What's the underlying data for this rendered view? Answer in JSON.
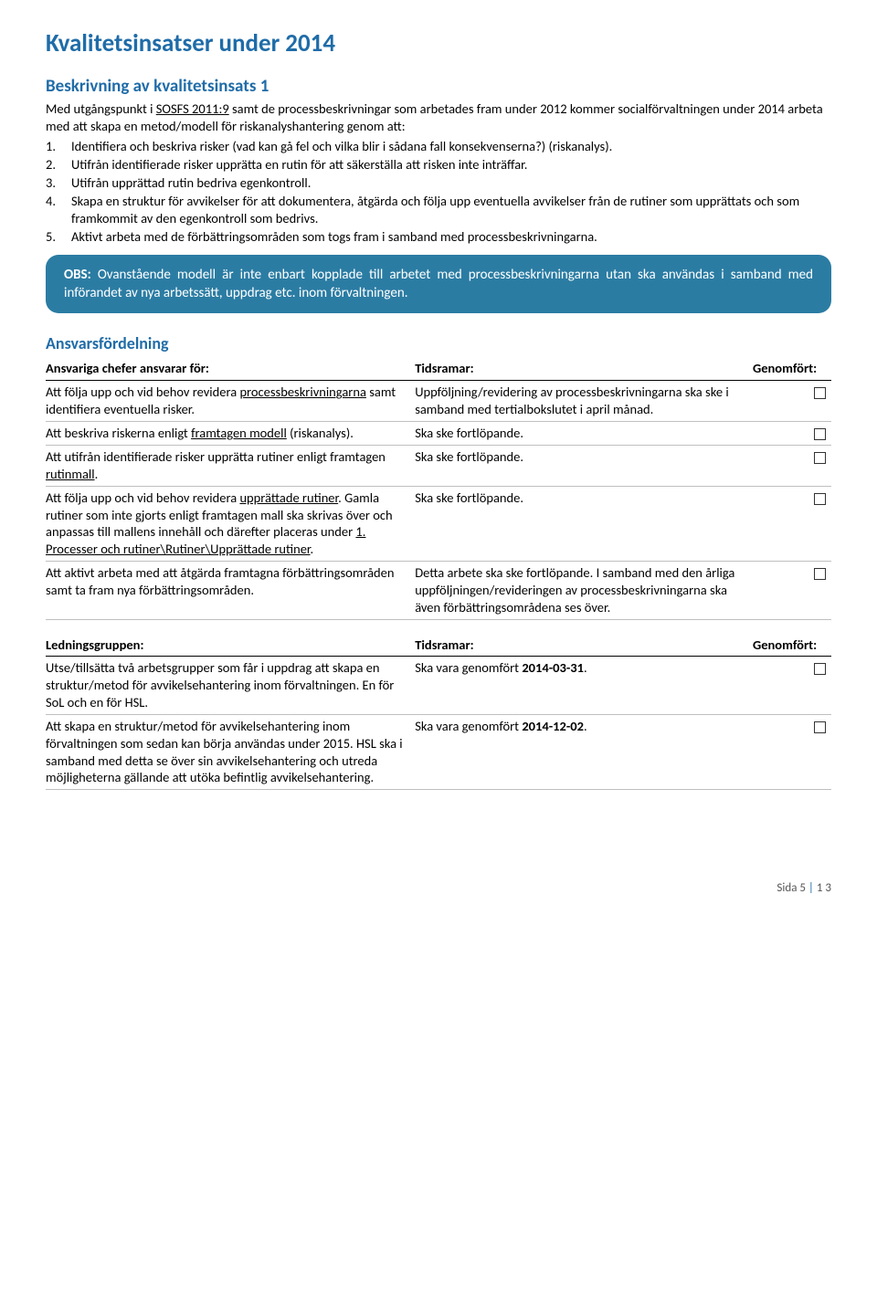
{
  "colors": {
    "heading": "#1f6ca8",
    "callout_bg": "#2b7ca3",
    "callout_text": "#ffffff",
    "body_text": "#000000",
    "row_border": "#bfbfbf",
    "header_border": "#000000"
  },
  "title": "Kvalitetsinsatser under 2014",
  "subheading": "Beskrivning av kvalitetsinsats 1",
  "intro_pre": "Med utgångspunkt i ",
  "intro_underline": "SOSFS 2011:9",
  "intro_post": " samt de processbeskrivningar som arbetades fram under 2012 kommer socialförvaltningen under 2014 arbeta med att skapa en metod/modell för riskanalyshantering genom att:",
  "list": [
    "Identifiera och beskriva risker (vad kan gå fel och vilka blir i sådana fall konsekvenserna?) (riskanalys).",
    "Utifrån identifierade risker upprätta en rutin för att säkerställa att risken inte inträffar.",
    "Utifrån upprättad rutin bedriva egenkontroll.",
    "Skapa en struktur för avvikelser för att dokumentera, åtgärda och följa upp eventuella avvikelser från de rutiner som upprättats och som framkommit av den egenkontroll som bedrivs.",
    "Aktivt arbeta med de förbättringsområden som togs fram i samband med processbeskrivningarna."
  ],
  "callout_prefix": "OBS:",
  "callout_text": " Ovanstående modell är inte enbart kopplade till arbetet med processbeskrivningarna utan ska användas i samband med införandet av nya arbetssätt, uppdrag etc. inom förvaltningen.",
  "section_heading": "Ansvarsfördelning",
  "table1": {
    "headers": [
      "Ansvariga chefer ansvarar för:",
      "Tidsramar:",
      "Genomfört:"
    ],
    "rows": [
      {
        "c1_parts": [
          {
            "t": "Att följa upp och vid behov revidera "
          },
          {
            "t": "processbeskrivningarna",
            "u": true
          },
          {
            "t": " samt identifiera eventuella risker."
          }
        ],
        "c2": "Uppföljning/revidering av processbeskrivningarna ska ske i samband med tertialbokslutet i april månad."
      },
      {
        "c1_parts": [
          {
            "t": "Att beskriva riskerna enligt "
          },
          {
            "t": "framtagen modell",
            "u": true
          },
          {
            "t": " (riskanalys)."
          }
        ],
        "c2": "Ska ske fortlöpande."
      },
      {
        "c1_parts": [
          {
            "t": "Att utifrån identifierade risker upprätta rutiner enligt framtagen "
          },
          {
            "t": "rutinmall",
            "u": true
          },
          {
            "t": "."
          }
        ],
        "c2": "Ska ske fortlöpande."
      },
      {
        "c1_parts": [
          {
            "t": "Att följa upp och vid behov revidera "
          },
          {
            "t": "upprättade rutiner",
            "u": true
          },
          {
            "t": ". Gamla rutiner som inte gjorts enligt framtagen mall ska skrivas över och anpassas till mallens innehåll och därefter placeras under "
          },
          {
            "t": "1. Processer och rutiner\\Rutiner\\Upprättade rutiner",
            "u": true
          },
          {
            "t": "."
          }
        ],
        "c2": "Ska ske fortlöpande."
      },
      {
        "c1_parts": [
          {
            "t": "Att aktivt arbeta med att åtgärda framtagna förbättringsområden samt ta fram nya förbättringsområden."
          }
        ],
        "c2": "Detta arbete ska ske fortlöpande. I samband med den årliga uppföljningen/revideringen av processbeskrivningarna ska även förbättringsområdena ses över."
      }
    ]
  },
  "table2": {
    "headers": [
      "Ledningsgruppen:",
      "Tidsramar:",
      "Genomfört:"
    ],
    "rows": [
      {
        "c1": "Utse/tillsätta två arbetsgrupper som får i uppdrag att skapa en struktur/metod för avvikelsehantering inom förvaltningen. En för SoL och en för HSL.",
        "c2_pre": "Ska vara genomfört ",
        "c2_bold": "2014-03-31",
        "c2_post": "."
      },
      {
        "c1": "Att skapa en struktur/metod för avvikelsehantering inom förvaltningen som sedan kan börja användas under 2015. HSL ska i samband med detta se över sin avvikelsehantering och utreda möjligheterna gällande att utöka befintlig avvikelsehantering.",
        "c2_pre": "Ska vara genomfört ",
        "c2_bold": "2014-12-02",
        "c2_post": "."
      }
    ]
  },
  "footer": {
    "label": "Sida 5",
    "sep": "|",
    "total": "1 3"
  }
}
